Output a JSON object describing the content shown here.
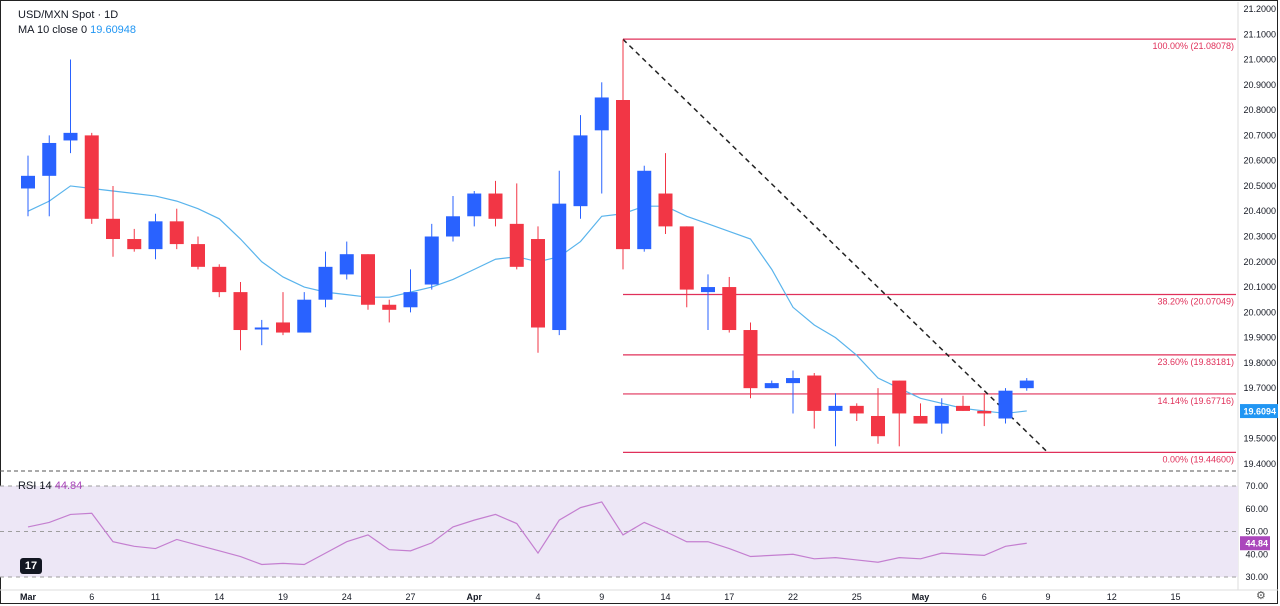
{
  "legend": {
    "symbol": "USD/MXN Spot · 1D",
    "ma_label": "MA 10 close 0",
    "ma_value": "19.60948",
    "rsi_label": "RSI 14",
    "rsi_value": "44.84"
  },
  "branding": {
    "logo_text": "17"
  },
  "colors": {
    "up": "#2962ff",
    "down": "#f23645",
    "ma": "#5ab4ec",
    "rsi": "#c47fd0",
    "fib": "#e0305a",
    "rsi_band": "#ede7f6"
  },
  "chart_data": [
    {
      "type": "candlestick",
      "title": "USD/MXN Spot · 1D",
      "ylim": [
        19.4,
        21.2
      ],
      "y_ticks": [
        "21.2000",
        "21.1000",
        "21.0000",
        "20.9000",
        "20.8000",
        "20.7000",
        "20.6000",
        "20.5000",
        "20.4000",
        "20.3000",
        "20.2000",
        "20.1000",
        "20.0000",
        "19.9000",
        "19.8000",
        "19.7000",
        "19.6094",
        "19.5000",
        "19.4000"
      ],
      "x_ticks": [
        {
          "label": "Mar",
          "i": 1
        },
        {
          "label": "6",
          "i": 4
        },
        {
          "label": "11",
          "i": 7
        },
        {
          "label": "14",
          "i": 10
        },
        {
          "label": "19",
          "i": 13
        },
        {
          "label": "24",
          "i": 16
        },
        {
          "label": "27",
          "i": 19
        },
        {
          "label": "Apr",
          "i": 22
        },
        {
          "label": "4",
          "i": 25
        },
        {
          "label": "9",
          "i": 28
        },
        {
          "label": "14",
          "i": 31
        },
        {
          "label": "17",
          "i": 34
        },
        {
          "label": "22",
          "i": 37
        },
        {
          "label": "25",
          "i": 40
        },
        {
          "label": "May",
          "i": 43
        },
        {
          "label": "6",
          "i": 46
        },
        {
          "label": "9",
          "i": 49
        },
        {
          "label": "12",
          "i": 52
        },
        {
          "label": "15",
          "i": 55
        }
      ],
      "candles": [
        {
          "o": 20.49,
          "h": 20.62,
          "l": 20.38,
          "c": 20.54
        },
        {
          "o": 20.54,
          "h": 20.7,
          "l": 20.38,
          "c": 20.67
        },
        {
          "o": 20.68,
          "h": 21.0,
          "l": 20.63,
          "c": 20.71
        },
        {
          "o": 20.7,
          "h": 20.71,
          "l": 20.35,
          "c": 20.37
        },
        {
          "o": 20.37,
          "h": 20.5,
          "l": 20.22,
          "c": 20.29
        },
        {
          "o": 20.29,
          "h": 20.33,
          "l": 20.24,
          "c": 20.25
        },
        {
          "o": 20.25,
          "h": 20.39,
          "l": 20.21,
          "c": 20.36
        },
        {
          "o": 20.36,
          "h": 20.41,
          "l": 20.25,
          "c": 20.27
        },
        {
          "o": 20.27,
          "h": 20.3,
          "l": 20.17,
          "c": 20.18
        },
        {
          "o": 20.18,
          "h": 20.19,
          "l": 20.06,
          "c": 20.08
        },
        {
          "o": 20.08,
          "h": 20.12,
          "l": 19.85,
          "c": 19.93
        },
        {
          "o": 19.94,
          "h": 19.97,
          "l": 19.87,
          "c": 19.94
        },
        {
          "o": 19.96,
          "h": 20.08,
          "l": 19.91,
          "c": 19.92
        },
        {
          "o": 19.92,
          "h": 20.08,
          "l": 19.92,
          "c": 20.05
        },
        {
          "o": 20.05,
          "h": 20.24,
          "l": 20.02,
          "c": 20.18
        },
        {
          "o": 20.15,
          "h": 20.28,
          "l": 20.13,
          "c": 20.23
        },
        {
          "o": 20.23,
          "h": 20.23,
          "l": 20.01,
          "c": 20.03
        },
        {
          "o": 20.03,
          "h": 20.05,
          "l": 19.96,
          "c": 20.01
        },
        {
          "o": 20.02,
          "h": 20.17,
          "l": 20.0,
          "c": 20.08
        },
        {
          "o": 20.11,
          "h": 20.35,
          "l": 20.09,
          "c": 20.3
        },
        {
          "o": 20.3,
          "h": 20.46,
          "l": 20.28,
          "c": 20.38
        },
        {
          "o": 20.38,
          "h": 20.48,
          "l": 20.34,
          "c": 20.47
        },
        {
          "o": 20.47,
          "h": 20.52,
          "l": 20.34,
          "c": 20.37
        },
        {
          "o": 20.35,
          "h": 20.51,
          "l": 20.17,
          "c": 20.18
        },
        {
          "o": 20.29,
          "h": 20.34,
          "l": 19.84,
          "c": 19.94
        },
        {
          "o": 19.93,
          "h": 20.56,
          "l": 19.91,
          "c": 20.43
        },
        {
          "o": 20.42,
          "h": 20.78,
          "l": 20.37,
          "c": 20.7
        },
        {
          "o": 20.72,
          "h": 20.91,
          "l": 20.47,
          "c": 20.85
        },
        {
          "o": 20.84,
          "h": 21.08,
          "l": 20.17,
          "c": 20.25
        },
        {
          "o": 20.25,
          "h": 20.58,
          "l": 20.24,
          "c": 20.56
        },
        {
          "o": 20.47,
          "h": 20.63,
          "l": 20.31,
          "c": 20.34
        },
        {
          "o": 20.34,
          "h": 20.34,
          "l": 20.02,
          "c": 20.09
        },
        {
          "o": 20.08,
          "h": 20.15,
          "l": 19.93,
          "c": 20.1
        },
        {
          "o": 20.1,
          "h": 20.14,
          "l": 19.92,
          "c": 19.93
        },
        {
          "o": 19.93,
          "h": 19.96,
          "l": 19.66,
          "c": 19.7
        },
        {
          "o": 19.7,
          "h": 19.73,
          "l": 19.7,
          "c": 19.72
        },
        {
          "o": 19.72,
          "h": 19.77,
          "l": 19.6,
          "c": 19.74
        },
        {
          "o": 19.75,
          "h": 19.76,
          "l": 19.54,
          "c": 19.61
        },
        {
          "o": 19.61,
          "h": 19.68,
          "l": 19.47,
          "c": 19.63
        },
        {
          "o": 19.63,
          "h": 19.64,
          "l": 19.57,
          "c": 19.6
        },
        {
          "o": 19.59,
          "h": 19.7,
          "l": 19.48,
          "c": 19.51
        },
        {
          "o": 19.73,
          "h": 19.73,
          "l": 19.47,
          "c": 19.6
        },
        {
          "o": 19.59,
          "h": 19.64,
          "l": 19.56,
          "c": 19.56
        },
        {
          "o": 19.56,
          "h": 19.66,
          "l": 19.52,
          "c": 19.63
        },
        {
          "o": 19.63,
          "h": 19.67,
          "l": 19.61,
          "c": 19.61
        },
        {
          "o": 19.61,
          "h": 19.68,
          "l": 19.55,
          "c": 19.6
        },
        {
          "o": 19.58,
          "h": 19.7,
          "l": 19.56,
          "c": 19.69
        },
        {
          "o": 19.7,
          "h": 19.74,
          "l": 19.69,
          "c": 19.73
        }
      ],
      "ma10": [
        {
          "i": 0,
          "v": 20.4
        },
        {
          "i": 1,
          "v": 20.44
        },
        {
          "i": 2,
          "v": 20.5
        },
        {
          "i": 3,
          "v": 20.49
        },
        {
          "i": 4,
          "v": 20.48
        },
        {
          "i": 5,
          "v": 20.47
        },
        {
          "i": 6,
          "v": 20.46
        },
        {
          "i": 7,
          "v": 20.44
        },
        {
          "i": 8,
          "v": 20.41
        },
        {
          "i": 9,
          "v": 20.37
        },
        {
          "i": 10,
          "v": 20.29
        },
        {
          "i": 11,
          "v": 20.2
        },
        {
          "i": 12,
          "v": 20.14
        },
        {
          "i": 13,
          "v": 20.1
        },
        {
          "i": 14,
          "v": 20.08
        },
        {
          "i": 15,
          "v": 20.07
        },
        {
          "i": 16,
          "v": 20.06
        },
        {
          "i": 17,
          "v": 20.06
        },
        {
          "i": 18,
          "v": 20.08
        },
        {
          "i": 19,
          "v": 20.1
        },
        {
          "i": 20,
          "v": 20.13
        },
        {
          "i": 21,
          "v": 20.17
        },
        {
          "i": 22,
          "v": 20.21
        },
        {
          "i": 23,
          "v": 20.22
        },
        {
          "i": 24,
          "v": 20.2
        },
        {
          "i": 25,
          "v": 20.22
        },
        {
          "i": 26,
          "v": 20.28
        },
        {
          "i": 27,
          "v": 20.38
        },
        {
          "i": 28,
          "v": 20.39
        },
        {
          "i": 29,
          "v": 20.42
        },
        {
          "i": 30,
          "v": 20.42
        },
        {
          "i": 31,
          "v": 20.38
        },
        {
          "i": 32,
          "v": 20.35
        },
        {
          "i": 33,
          "v": 20.32
        },
        {
          "i": 34,
          "v": 20.29
        },
        {
          "i": 35,
          "v": 20.17
        },
        {
          "i": 36,
          "v": 20.02
        },
        {
          "i": 37,
          "v": 19.95
        },
        {
          "i": 38,
          "v": 19.9
        },
        {
          "i": 39,
          "v": 19.83
        },
        {
          "i": 40,
          "v": 19.74
        },
        {
          "i": 41,
          "v": 19.7
        },
        {
          "i": 42,
          "v": 19.66
        },
        {
          "i": 43,
          "v": 19.64
        },
        {
          "i": 44,
          "v": 19.62
        },
        {
          "i": 45,
          "v": 19.61
        },
        {
          "i": 46,
          "v": 19.6
        },
        {
          "i": 47,
          "v": 19.61
        }
      ],
      "fibonacci": [
        {
          "label": "100.00% (21.08078)",
          "value": 21.08078
        },
        {
          "label": "38.20% (20.07049)",
          "value": 20.07049
        },
        {
          "label": "23.60% (19.83181)",
          "value": 19.83181
        },
        {
          "label": "14.14% (19.67716)",
          "value": 19.67716
        },
        {
          "label": "0.00% (19.44600)",
          "value": 19.446
        }
      ],
      "fib_start_i": 28,
      "trendline": {
        "i0": 28,
        "v0": 21.08,
        "i1": 48,
        "v1": 19.445
      },
      "ma_price_tag": "19.6094"
    },
    {
      "type": "line",
      "name": "RSI 14",
      "ylim": [
        30,
        70
      ],
      "y_ticks": [
        "70.00",
        "60.00",
        "50.00",
        "40.00",
        "30.00"
      ],
      "band": [
        30,
        70
      ],
      "midline": 50,
      "last_tag": "44.84",
      "values": [
        {
          "i": 0,
          "v": 52
        },
        {
          "i": 1,
          "v": 54
        },
        {
          "i": 2,
          "v": 57.5
        },
        {
          "i": 3,
          "v": 58
        },
        {
          "i": 4,
          "v": 45.5
        },
        {
          "i": 5,
          "v": 43.5
        },
        {
          "i": 6,
          "v": 42.5
        },
        {
          "i": 7,
          "v": 46.5
        },
        {
          "i": 8,
          "v": 44
        },
        {
          "i": 9,
          "v": 41.5
        },
        {
          "i": 10,
          "v": 39
        },
        {
          "i": 11,
          "v": 35.5
        },
        {
          "i": 12,
          "v": 36
        },
        {
          "i": 13,
          "v": 35.5
        },
        {
          "i": 14,
          "v": 40.5
        },
        {
          "i": 15,
          "v": 45.5
        },
        {
          "i": 16,
          "v": 48.5
        },
        {
          "i": 17,
          "v": 42
        },
        {
          "i": 18,
          "v": 41.5
        },
        {
          "i": 19,
          "v": 45
        },
        {
          "i": 20,
          "v": 52
        },
        {
          "i": 21,
          "v": 55
        },
        {
          "i": 22,
          "v": 57.5
        },
        {
          "i": 23,
          "v": 53.5
        },
        {
          "i": 24,
          "v": 40.5
        },
        {
          "i": 25,
          "v": 55
        },
        {
          "i": 26,
          "v": 60.5
        },
        {
          "i": 27,
          "v": 63
        },
        {
          "i": 28,
          "v": 48.5
        },
        {
          "i": 29,
          "v": 54
        },
        {
          "i": 30,
          "v": 50
        },
        {
          "i": 31,
          "v": 45.5
        },
        {
          "i": 32,
          "v": 45.5
        },
        {
          "i": 33,
          "v": 42.5
        },
        {
          "i": 34,
          "v": 39
        },
        {
          "i": 35,
          "v": 39.5
        },
        {
          "i": 36,
          "v": 40
        },
        {
          "i": 37,
          "v": 38
        },
        {
          "i": 38,
          "v": 38.5
        },
        {
          "i": 39,
          "v": 37.5
        },
        {
          "i": 40,
          "v": 36.5
        },
        {
          "i": 41,
          "v": 38.5
        },
        {
          "i": 42,
          "v": 38
        },
        {
          "i": 43,
          "v": 40.5
        },
        {
          "i": 44,
          "v": 40
        },
        {
          "i": 45,
          "v": 39.5
        },
        {
          "i": 46,
          "v": 43.5
        },
        {
          "i": 47,
          "v": 44.84
        }
      ]
    }
  ]
}
